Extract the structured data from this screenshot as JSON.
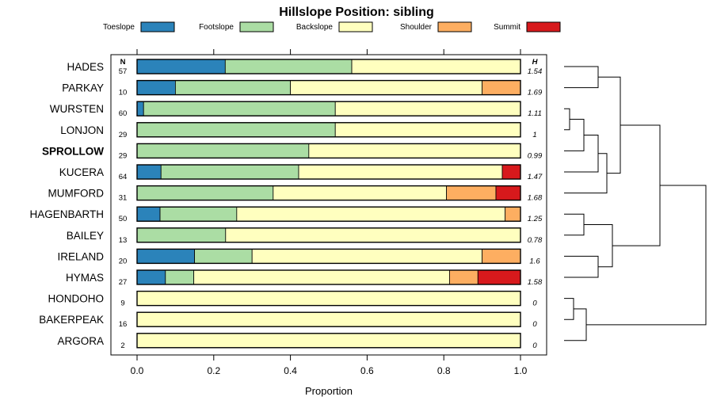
{
  "chart_data": {
    "type": "bar",
    "stacked": true,
    "orientation": "horizontal",
    "title": "Hillslope Position: sibling",
    "xlabel": "Proportion",
    "xlim": [
      0,
      1
    ],
    "xticks": [
      "0.0",
      "0.2",
      "0.4",
      "0.6",
      "0.8",
      "1.0"
    ],
    "n_header": "N",
    "h_header": "H",
    "highlight_site": "SPROLLOW",
    "legend": [
      "Toeslope",
      "Footslope",
      "Backslope",
      "Shoulder",
      "Summit"
    ],
    "colors": [
      "#2b83ba",
      "#abdda4",
      "#ffffbf",
      "#fdae61",
      "#d7191c"
    ],
    "sites": [
      {
        "name": "HADES",
        "n": "57",
        "h": "1.54",
        "values": [
          0.23,
          0.33,
          0.44,
          0.0,
          0.0
        ]
      },
      {
        "name": "PARKAY",
        "n": "10",
        "h": "1.69",
        "values": [
          0.1,
          0.3,
          0.5,
          0.1,
          0.0
        ]
      },
      {
        "name": "WURSTEN",
        "n": "60",
        "h": "1.11",
        "values": [
          0.017,
          0.5,
          0.483,
          0.0,
          0.0
        ]
      },
      {
        "name": "LONJON",
        "n": "29",
        "h": "1",
        "values": [
          0.0,
          0.517,
          0.483,
          0.0,
          0.0
        ]
      },
      {
        "name": "SPROLLOW",
        "n": "29",
        "h": "0.99",
        "values": [
          0.0,
          0.448,
          0.552,
          0.0,
          0.0
        ]
      },
      {
        "name": "KUCERA",
        "n": "64",
        "h": "1.47",
        "values": [
          0.0625,
          0.359,
          0.531,
          0.0,
          0.0475
        ]
      },
      {
        "name": "MUMFORD",
        "n": "31",
        "h": "1.68",
        "values": [
          0.0,
          0.355,
          0.452,
          0.129,
          0.064
        ]
      },
      {
        "name": "HAGENBARTH",
        "n": "50",
        "h": "1.25",
        "values": [
          0.06,
          0.2,
          0.7,
          0.04,
          0.0
        ]
      },
      {
        "name": "BAILEY",
        "n": "13",
        "h": "0.78",
        "values": [
          0.0,
          0.231,
          0.769,
          0.0,
          0.0
        ]
      },
      {
        "name": "IRELAND",
        "n": "20",
        "h": "1.6",
        "values": [
          0.15,
          0.15,
          0.6,
          0.1,
          0.0
        ]
      },
      {
        "name": "HYMAS",
        "n": "27",
        "h": "1.58",
        "values": [
          0.074,
          0.074,
          0.667,
          0.074,
          0.111
        ]
      },
      {
        "name": "HONDOHO",
        "n": "9",
        "h": "0",
        "values": [
          0.0,
          0.0,
          1.0,
          0.0,
          0.0
        ]
      },
      {
        "name": "BAKERPEAK",
        "n": "16",
        "h": "0",
        "values": [
          0.0,
          0.0,
          1.0,
          0.0,
          0.0
        ]
      },
      {
        "name": "ARGORA",
        "n": "2",
        "h": "0",
        "values": [
          0.0,
          0.0,
          1.0,
          0.0,
          0.0
        ]
      }
    ],
    "dendrogram": {
      "merge_order": [
        [
          "WURSTEN",
          "LONJON"
        ],
        [
          "WURSTEN+LONJON",
          "SPROLLOW"
        ],
        [
          "WURSTEN+LONJON+SPROLLOW",
          "KUCERA"
        ],
        [
          "...",
          "MUMFORD"
        ],
        [
          "HADES",
          "PARKAY"
        ],
        [
          "HADES+PARKAY",
          "WURSTEN..MUMFORD"
        ],
        [
          "HAGENBARTH",
          "BAILEY"
        ],
        [
          "IRELAND",
          "HYMAS"
        ],
        [
          "HAGENBARTH+BAILEY",
          "IRELAND+HYMAS"
        ],
        [
          "HONDOHO",
          "BAKERPEAK"
        ],
        [
          "HONDOHO+BAKERPEAK",
          "ARGORA"
        ]
      ]
    }
  }
}
